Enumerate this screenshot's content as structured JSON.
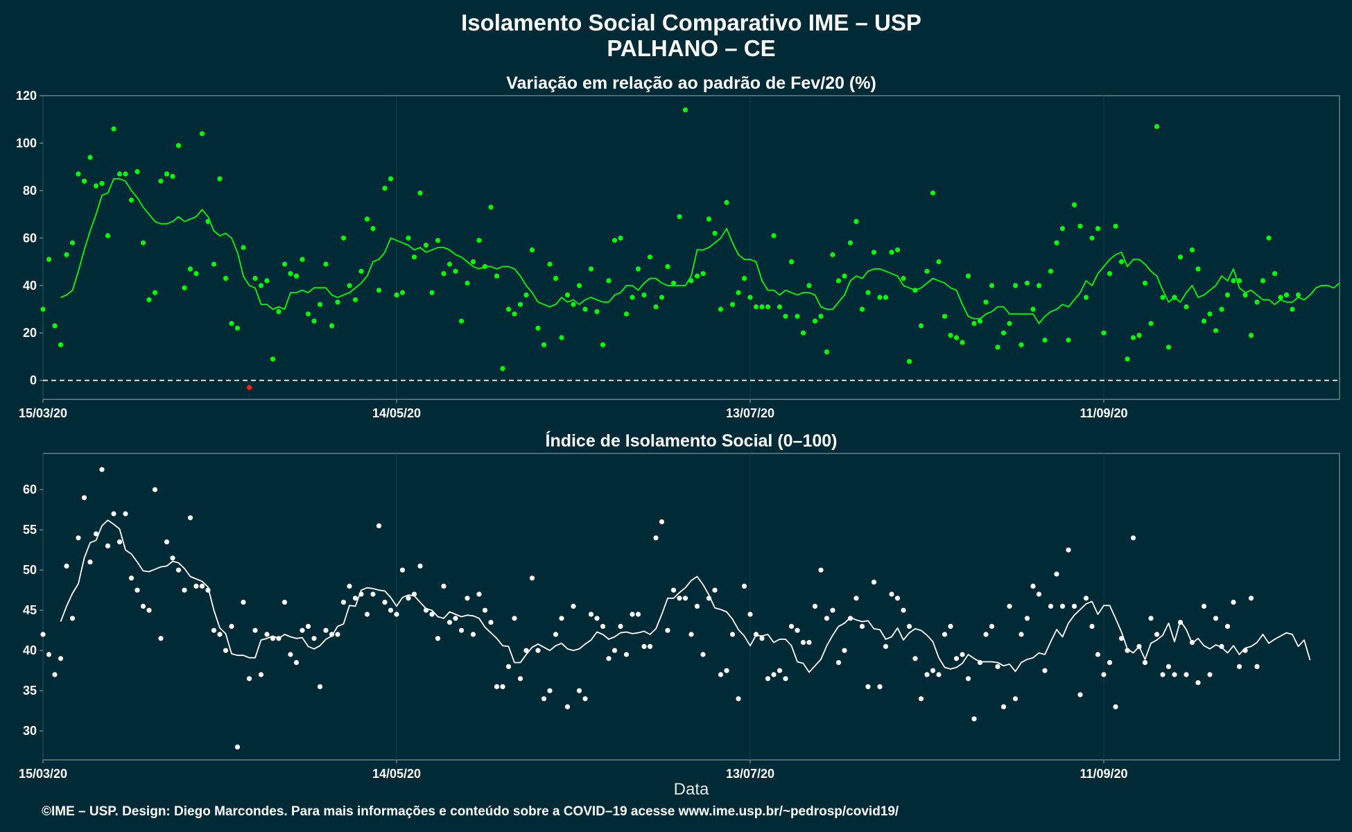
{
  "title_line1": "Isolamento Social Comparativo IME – USP",
  "title_line2": "PALHANO – CE",
  "x_axis_label": "Data",
  "footer": "©IME – USP. Design: Diego Marcondes. Para mais informações e conteúdo sobre a COVID–19 acesse www.ime.usp.br/~pedrosp/covid19/",
  "colors": {
    "background": "#002a35",
    "panel_border": "#7f9aa0",
    "points_top": "#00ff00",
    "negative_point": "#ff2020",
    "points_bottom": "#ffffff",
    "zero_line": "#ffffff"
  },
  "chart_data": [
    {
      "type": "scatter",
      "title": "Variação em relação ao padrão de Fev/20 (%)",
      "xlabel": "",
      "ylabel": "",
      "x_range": [
        "2020-03-15",
        "2020-10-21"
      ],
      "ylim": [
        -8,
        120
      ],
      "y_ticks": [
        0,
        20,
        40,
        60,
        80,
        100,
        120
      ],
      "x_ticks": [
        {
          "date": "2020-03-15",
          "label": "15/03/20"
        },
        {
          "date": "2020-05-14",
          "label": "14/05/20"
        },
        {
          "date": "2020-07-13",
          "label": "13/07/20"
        },
        {
          "date": "2020-09-11",
          "label": "11/09/20"
        }
      ],
      "reference_line": {
        "y": 0,
        "style": "dashed"
      },
      "grid": false,
      "series": [
        {
          "style": "points",
          "x_start": "2020-03-15",
          "values": [
            30,
            51,
            23,
            15,
            53,
            58,
            87,
            84,
            94,
            82,
            83,
            61,
            106,
            87,
            87,
            76,
            88,
            58,
            34,
            37,
            84,
            87,
            86,
            99,
            39,
            47,
            45,
            104,
            67,
            49,
            85,
            43,
            24,
            22,
            56,
            -3,
            43,
            40,
            42,
            9,
            29,
            49,
            45,
            44,
            51,
            28,
            25,
            32,
            49,
            23,
            33,
            60,
            40,
            34,
            46,
            68,
            64,
            38,
            81,
            85,
            36,
            37,
            60,
            52,
            79,
            57,
            37,
            59,
            45,
            49,
            46,
            25,
            41,
            50,
            59,
            48,
            73,
            44,
            5,
            30,
            28,
            32,
            36,
            55,
            22,
            15,
            49,
            43,
            18,
            36,
            32,
            40,
            30,
            47,
            29,
            15,
            42,
            59,
            60,
            28,
            35,
            47,
            36,
            52,
            31,
            35,
            48,
            41,
            69,
            114,
            42,
            44,
            45,
            68,
            62,
            30,
            75,
            32,
            37,
            43,
            35,
            31,
            31,
            31,
            61,
            31,
            27,
            50,
            27,
            20,
            40,
            25,
            27,
            12,
            53,
            42,
            44,
            58,
            67,
            30,
            37,
            54,
            35,
            35,
            54,
            55,
            43,
            8,
            38,
            23,
            46,
            79,
            50,
            27,
            19,
            18,
            16,
            44,
            24,
            25,
            33,
            40,
            14,
            20,
            24,
            40,
            15,
            41,
            30,
            40,
            17,
            46,
            58,
            64,
            17,
            74,
            65,
            35,
            60,
            64,
            20,
            45,
            65,
            50,
            9,
            18,
            19,
            41,
            24,
            107,
            35,
            14,
            35,
            52,
            31,
            55,
            47,
            25,
            28,
            21,
            30,
            36,
            42,
            42,
            36,
            19,
            33,
            42,
            60,
            45,
            35,
            36,
            30,
            36
          ]
        },
        {
          "style": "line",
          "x_start": "2020-03-18",
          "values": [
            35,
            36,
            38,
            46,
            55,
            63,
            70,
            78,
            79,
            85,
            85,
            84,
            80,
            77,
            73,
            70,
            67,
            66,
            66,
            67,
            69,
            67,
            68,
            69,
            72,
            69,
            63,
            61,
            62,
            60,
            54,
            44,
            40,
            39,
            32,
            32,
            30,
            31,
            30,
            37,
            37,
            38,
            37,
            39,
            39,
            39,
            36,
            35,
            36,
            37,
            39,
            41,
            44,
            50,
            51,
            54,
            60,
            59,
            58,
            57,
            55,
            56,
            54,
            55,
            56,
            56,
            55,
            53,
            52,
            50,
            48,
            47,
            48,
            48,
            47,
            48,
            48,
            47,
            44,
            40,
            37,
            33,
            32,
            31,
            32,
            35,
            33,
            34,
            32,
            34,
            35,
            34,
            33,
            33,
            36,
            37,
            40,
            40,
            38,
            41,
            43,
            43,
            41,
            40,
            40,
            40,
            40,
            44,
            55,
            55,
            56,
            58,
            60,
            64,
            58,
            53,
            51,
            51,
            50,
            42,
            38,
            38,
            36,
            38,
            37,
            36,
            37,
            37,
            36,
            31,
            30,
            30,
            33,
            36,
            42,
            44,
            43,
            46,
            47,
            47,
            46,
            45,
            44,
            40,
            39,
            38,
            39,
            41,
            43,
            42,
            41,
            39,
            38,
            32,
            27,
            26,
            26,
            28,
            29,
            31,
            31,
            28,
            28,
            28,
            28,
            28,
            24,
            27,
            29,
            30,
            32,
            31,
            34,
            37,
            42,
            40,
            45,
            48,
            51,
            53,
            54,
            48,
            51,
            51,
            49,
            46,
            44,
            38,
            33,
            35,
            33,
            37,
            40,
            35,
            36,
            38,
            40,
            44,
            42,
            47,
            39,
            37,
            38,
            36,
            34,
            34,
            32,
            34,
            33,
            33,
            35,
            34,
            36,
            39,
            40,
            40,
            39,
            41
          ]
        }
      ]
    },
    {
      "type": "scatter",
      "title": "Índice de Isolamento Social (0–100)",
      "xlabel": "Data",
      "ylabel": "",
      "x_range": [
        "2020-03-15",
        "2020-10-21"
      ],
      "ylim": [
        26.4,
        64.5
      ],
      "y_ticks": [
        30,
        35,
        40,
        45,
        50,
        55,
        60
      ],
      "x_ticks": [
        {
          "date": "2020-03-15",
          "label": "15/03/20"
        },
        {
          "date": "2020-05-14",
          "label": "14/05/20"
        },
        {
          "date": "2020-07-13",
          "label": "13/07/20"
        },
        {
          "date": "2020-09-11",
          "label": "11/09/20"
        }
      ],
      "grid": false,
      "series": [
        {
          "style": "points",
          "x_start": "2020-03-15",
          "values": [
            42,
            39.5,
            37,
            39,
            50.5,
            44,
            54,
            59,
            51,
            54.5,
            62.5,
            53,
            57,
            53.5,
            57,
            49,
            47.5,
            45.5,
            45,
            60,
            41.5,
            53.5,
            51.5,
            50,
            47.5,
            56.5,
            48,
            48,
            47.5,
            42.5,
            42,
            40,
            43,
            28,
            46,
            36.5,
            42.5,
            37,
            42,
            41.5,
            41.5,
            46,
            39.5,
            38.5,
            42.5,
            43,
            41.5,
            35.5,
            42.5,
            42,
            42,
            46,
            48,
            46.5,
            47,
            44.5,
            47,
            55.5,
            46,
            45,
            44.5,
            50,
            46.5,
            47,
            50.5,
            45,
            44.5,
            41.5,
            48,
            43.5,
            44,
            42.5,
            46.5,
            42,
            47,
            45,
            43.5,
            35.5,
            35.5,
            38,
            44,
            36.5,
            40,
            49,
            40,
            34,
            35,
            42,
            44,
            33,
            45.5,
            35,
            34,
            44.5,
            44,
            43,
            39,
            40,
            43,
            39.5,
            44.5,
            44.5,
            40.5,
            40.5,
            54,
            56,
            42.5,
            47.5,
            46.5,
            46.5,
            42,
            45.5,
            39.5,
            46.5,
            47.5,
            37,
            37.5,
            42,
            34,
            48,
            44.5,
            42,
            41.5,
            36.5,
            37,
            37.5,
            36.5,
            43,
            42.5,
            41,
            41,
            45.5,
            50,
            44,
            45,
            38.5,
            40,
            44,
            46.5,
            43,
            35.5,
            48.5,
            35.5,
            40.5,
            47,
            46.5,
            45,
            43,
            39,
            34,
            37,
            37.5,
            37,
            42,
            43,
            39,
            39.5,
            36.5,
            31.5,
            38.5,
            42,
            43,
            38,
            33,
            45.5,
            34,
            42,
            44,
            48,
            47,
            37.5,
            45.5,
            49.5,
            45.5,
            52.5,
            45.5,
            34.5,
            46.5,
            43,
            39.5,
            37,
            38.5,
            33,
            41.5,
            40,
            54,
            40.5,
            38.5,
            44,
            42,
            37,
            38,
            37,
            43.5,
            37,
            41,
            36,
            45.5,
            37,
            44,
            40.5,
            43,
            46,
            38,
            40,
            46.5,
            38
          ]
        },
        {
          "style": "line",
          "x_start": "2020-03-18",
          "values": [
            43.6,
            45.5,
            47.1,
            48.3,
            51.5,
            53.4,
            53.7,
            55.5,
            56.2,
            55.7,
            55.1,
            52.5,
            52.0,
            51.0,
            49.9,
            49.8,
            50.1,
            50.4,
            50.5,
            51.1,
            50.9,
            50.2,
            49.2,
            48.9,
            48.6,
            47.9,
            45.0,
            42.8,
            42.1,
            39.6,
            39.4,
            39.4,
            39.1,
            39.1,
            41.3,
            41.5,
            41.8,
            41.5,
            42.0,
            41.7,
            41.5,
            41.6,
            40.5,
            40.2,
            40.6,
            41.4,
            41.8,
            43.0,
            43.3,
            45.6,
            45.5,
            47.5,
            47.8,
            47.7,
            47.5,
            47.4,
            46.6,
            45.5,
            46.6,
            46.9,
            46.8,
            46.0,
            45.2,
            45.0,
            44.2,
            44.0,
            44.8,
            44.5,
            44.2,
            44.4,
            44.3,
            44.0,
            42.9,
            42.2,
            41.5,
            40.6,
            40.5,
            38.5,
            38.5,
            39.5,
            40.4,
            40.8,
            40.4,
            40.0,
            40.6,
            40.9,
            40.2,
            40.0,
            40.2,
            40.8,
            41.3,
            42.3,
            42.0,
            41.4,
            41.7,
            42.2,
            42.3,
            42.1,
            42.2,
            42.4,
            42.0,
            42.7,
            44.5,
            46.5,
            46.5,
            47.2,
            47.8,
            48.7,
            49.2,
            48.2,
            46.9,
            45.3,
            45.1,
            44.8,
            43.9,
            42.6,
            41.8,
            40.6,
            41.9,
            41.8,
            42.0,
            41.0,
            41.4,
            41.4,
            40.6,
            38.6,
            38.4,
            37.3,
            38.1,
            38.9,
            40.6,
            41.9,
            43.0,
            43.4,
            44.1,
            43.8,
            43.6,
            43.7,
            42.7,
            42.6,
            41.4,
            41.7,
            42.8,
            41.3,
            42.2,
            42.7,
            42.5,
            41.9,
            41.1,
            39.1,
            37.9,
            37.7,
            37.9,
            38.4,
            39.5,
            39.0,
            38.6,
            38.6,
            38.6,
            38.5,
            38.1,
            38.3,
            37.4,
            38.5,
            38.9,
            39.1,
            39.7,
            39.5,
            41.1,
            42.6,
            41.7,
            43.4,
            44.4,
            45.1,
            45.8,
            46.1,
            44.5,
            45.6,
            45.6,
            44.0,
            42.3,
            40.2,
            39.7,
            40.5,
            38.9,
            40.9,
            41.3,
            41.9,
            43.4,
            41.1,
            43.7,
            42.6,
            40.9,
            41.5,
            40.6,
            40.2,
            40.7,
            40.4,
            39.7,
            40.6,
            39.5,
            40.3,
            40.5,
            41.0,
            42.0,
            40.9,
            41.4,
            41.8,
            42.2,
            42.0,
            40.5,
            41.3,
            38.8
          ]
        }
      ]
    }
  ]
}
